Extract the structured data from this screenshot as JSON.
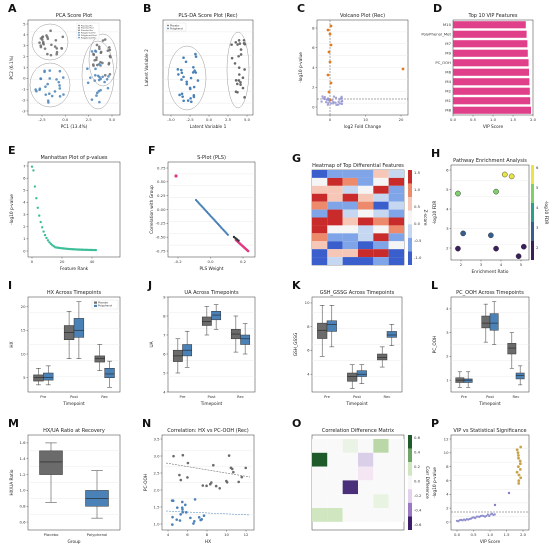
{
  "panels": [
    {
      "id": "A",
      "title": "PCA Score Plot",
      "xlabel": "PC1 (13.4%)",
      "ylabel": "PC2 (6.1%)",
      "xticks": [
        "-2.5",
        "0.0",
        "2.5",
        "5.0"
      ],
      "yticks": [
        "-3",
        "-2",
        "-1",
        "0",
        "1",
        "2",
        "3",
        "4",
        "5"
      ],
      "legend": [
        "Placebo Pre",
        "Placebo Post",
        "Placebo Rec",
        "Polyphenol Pre",
        "Polyphenol Post",
        "Polyphenol Rec"
      ]
    },
    {
      "id": "B",
      "title": "PLS-DA Score Plot (Rec)",
      "xlabel": "Latent Variable 1",
      "ylabel": "Latent Variable 2",
      "xticks": [
        "-5.0",
        "-2.5",
        "0.0",
        "2.5",
        "5.0"
      ],
      "yticks": [],
      "legend": [
        "Placebo",
        "Polyphenol"
      ]
    },
    {
      "id": "C",
      "title": "Volcano Plot (Rec)",
      "xlabel": "log2 Fold Change",
      "ylabel": "-log10 p-value",
      "xticks": [
        "0",
        "10",
        "20"
      ],
      "yticks": [
        "0",
        "2",
        "4",
        "6",
        "8"
      ]
    },
    {
      "id": "D",
      "title": "Top 10 VIP Features",
      "xlabel": "VIP Score",
      "xticks": [
        "0.0",
        "0.5",
        "1.0",
        "1.5",
        "2.0"
      ],
      "features": [
        "M10",
        "PolyPhenol_Met",
        "M7",
        "M9",
        "PC_OOH",
        "M6",
        "M4",
        "M2",
        "M1",
        "M8"
      ]
    },
    {
      "id": "E",
      "title": "Manhattan Plot of p-values",
      "xlabel": "Feature Rank",
      "ylabel": "-log10 p-value",
      "xticks": [
        "0",
        "20",
        "40"
      ],
      "yticks": [
        "0",
        "1",
        "2",
        "3",
        "4",
        "5",
        "6",
        "7"
      ]
    },
    {
      "id": "F",
      "title": "S-Plot (PLS)",
      "xlabel": "PLS Weight",
      "ylabel": "Correlation with Group",
      "xticks": [
        "-0.2",
        "0.0",
        "0.2"
      ],
      "yticks": [
        "-0.75",
        "-0.50",
        "-0.25",
        "0.00",
        "0.25",
        "0.50",
        "0.75"
      ]
    },
    {
      "id": "G",
      "title": "Heatmap of Top Differential Features",
      "cbar_label": "Z-score",
      "cbar_ticks": [
        "1.5",
        "1.0",
        "0.5",
        "0.0",
        "-0.5",
        "-1.0"
      ]
    },
    {
      "id": "H",
      "title": "Pathway Enrichment Analysis",
      "xlabel": "Enrichment Ratio",
      "ylabel": "-log10 FDR",
      "cbar_label": "-log10 FDR",
      "xticks": [
        "2",
        "3",
        "4",
        "5"
      ],
      "yticks": [
        "2",
        "3",
        "4",
        "5",
        "6"
      ],
      "cbar_ticks": [
        "6",
        "5",
        "4",
        "3",
        "2"
      ]
    },
    {
      "id": "I",
      "title": "HX Across Timepoints",
      "xlabel": "Timepoint",
      "ylabel": "HX",
      "cats": [
        "Pre",
        "Post",
        "Rec"
      ],
      "yticks": [
        "5",
        "10",
        "15",
        "20"
      ],
      "legend": [
        "Placebo",
        "Polyphenol"
      ]
    },
    {
      "id": "J",
      "title": "UA Across Timepoints",
      "xlabel": "Timepoint",
      "ylabel": "UA",
      "cats": [
        "Pre",
        "Post",
        "Rec"
      ],
      "yticks": [
        "4",
        "5",
        "6",
        "7",
        "8",
        "9"
      ]
    },
    {
      "id": "K",
      "title": "GSH_GSSG Across Timepoints",
      "xlabel": "Timepoint",
      "ylabel": "GSH_GSSG",
      "cats": [
        "Pre",
        "Post",
        "Rec"
      ],
      "yticks": [
        "4",
        "6",
        "8",
        "10"
      ]
    },
    {
      "id": "L",
      "title": "PC_OOH Across Timepoints",
      "xlabel": "Timepoint",
      "ylabel": "PC_OOH",
      "cats": [
        "Pre",
        "Post",
        "Rec"
      ],
      "yticks": [
        "1",
        "2",
        "3",
        "4"
      ]
    },
    {
      "id": "M",
      "title": "HX/UA Ratio at Recovery",
      "xlabel": "Group",
      "ylabel": "HX/UA Ratio",
      "cats": [
        "Placebo",
        "Polyphenol"
      ],
      "yticks": [
        "0.6",
        "0.8",
        "1.0",
        "1.2",
        "1.4",
        "1.6"
      ]
    },
    {
      "id": "N",
      "title": "Correlation: HX vs PC-OOH (Rec)",
      "xlabel": "HX",
      "ylabel": "PC-OOH",
      "xticks": [
        "4",
        "6",
        "8",
        "10",
        "12"
      ],
      "yticks": [
        "1.0",
        "1.5",
        "2.0",
        "2.5",
        "3.0",
        "3.5"
      ]
    },
    {
      "id": "O",
      "title": "Correlation Difference Matrix",
      "cbar_label": "Corr Difference",
      "cbar_ticks": [
        "0.6",
        "0.4",
        "0.2",
        "0.0",
        "-0.2",
        "-0.4",
        "-0.6"
      ]
    },
    {
      "id": "P",
      "title": "VIP vs Statistical Significance",
      "xlabel": "VIP Score",
      "ylabel": "-log10 p-value",
      "xticks": [
        "0.0",
        "0.5",
        "1.0",
        "1.5",
        "2.0"
      ],
      "yticks": [
        "0",
        "2",
        "4",
        "6",
        "8",
        "10",
        "12"
      ]
    }
  ],
  "colors": {
    "placebo": "#6b6b6b",
    "polyphenol": "#4a82b8",
    "vip": "#e0408a",
    "manhattan": "#3cbf98",
    "volcano_sig": "#e07b20",
    "volcano_ns": "#8f8fcf",
    "splot_pos": "#e23a84"
  },
  "chart_data": [
    {
      "panel": "D",
      "type": "bar",
      "orientation": "horizontal",
      "categories": [
        "M10",
        "PolyPhenol_Met",
        "M7",
        "M9",
        "PC_OOH",
        "M6",
        "M4",
        "M2",
        "M1",
        "M8"
      ],
      "values": [
        1.82,
        1.84,
        1.86,
        1.87,
        1.89,
        1.9,
        1.91,
        1.92,
        1.93,
        1.95
      ],
      "xlim": [
        0,
        2.0
      ]
    },
    {
      "panel": "I",
      "type": "box",
      "categories": [
        "Pre",
        "Post",
        "Rec"
      ],
      "series": [
        {
          "name": "Placebo",
          "boxes": [
            [
              3.5,
              4.3,
              5,
              5.6,
              7
            ],
            [
              9,
              13,
              14.5,
              16,
              19
            ],
            [
              6.5,
              8.3,
              9,
              9.6,
              12
            ]
          ]
        },
        {
          "name": "Polyphenol",
          "boxes": [
            [
              3.5,
              4.5,
              5.1,
              6,
              7.5
            ],
            [
              9,
              13.5,
              15,
              17.5,
              21
            ],
            [
              3,
              5,
              5.8,
              7,
              8.5
            ]
          ]
        }
      ],
      "ylim": [
        2,
        22
      ]
    },
    {
      "panel": "J",
      "type": "box",
      "categories": [
        "Pre",
        "Post",
        "Rec"
      ],
      "series": [
        {
          "name": "Placebo",
          "boxes": [
            [
              5,
              5.6,
              5.9,
              6.2,
              6.8
            ],
            [
              7,
              7.5,
              7.7,
              7.95,
              8.5
            ],
            [
              6.1,
              6.8,
              7.05,
              7.3,
              8
            ]
          ]
        },
        {
          "name": "Polyphenol",
          "boxes": [
            [
              5.3,
              5.9,
              6.2,
              6.5,
              7.2
            ],
            [
              7.3,
              7.8,
              8.05,
              8.25,
              8.6
            ],
            [
              6,
              6.5,
              6.8,
              7,
              7.6
            ]
          ]
        }
      ],
      "ylim": [
        4,
        9
      ]
    },
    {
      "panel": "K",
      "type": "box",
      "categories": [
        "Pre",
        "Post",
        "Rec"
      ],
      "series": [
        {
          "name": "Placebo",
          "boxes": [
            [
              5.5,
              7,
              7.7,
              8.3,
              9.8
            ],
            [
              2.8,
              3.4,
              3.8,
              4.1,
              4.8
            ],
            [
              4.6,
              5.2,
              5.4,
              5.7,
              6.3
            ]
          ]
        },
        {
          "name": "Polyphenol",
          "boxes": [
            [
              6.3,
              7.6,
              8.2,
              8.5,
              9.8
            ],
            [
              3.2,
              3.8,
              4,
              4.3,
              4.8
            ],
            [
              6.4,
              7.1,
              7.3,
              7.6,
              8.2
            ]
          ]
        }
      ],
      "ylim": [
        2.5,
        10.5
      ]
    },
    {
      "panel": "L",
      "type": "box",
      "categories": [
        "Pre",
        "Post",
        "Rec"
      ],
      "series": [
        {
          "name": "Placebo",
          "boxes": [
            [
              0.7,
              0.9,
              1,
              1.1,
              1.35
            ],
            [
              2.6,
              3.2,
              3.4,
              3.7,
              4.2
            ],
            [
              1.5,
              2.1,
              2.35,
              2.55,
              3
            ]
          ]
        },
        {
          "name": "Polyphenol",
          "boxes": [
            [
              0.7,
              0.9,
              1,
              1.05,
              1.35
            ],
            [
              2.5,
              3.1,
              3.4,
              3.8,
              4.3
            ],
            [
              0.8,
              1.05,
              1.2,
              1.3,
              1.6
            ]
          ]
        }
      ],
      "ylim": [
        0.5,
        4.5
      ]
    },
    {
      "panel": "M",
      "type": "box",
      "categories": [
        "Placebo",
        "Polyphenol"
      ],
      "series": [
        {
          "name": "ratio",
          "boxes": [
            [
              0.85,
              1.2,
              1.36,
              1.5,
              1.6
            ],
            [
              0.65,
              0.8,
              0.9,
              1,
              1.25
            ]
          ]
        }
      ],
      "ylim": [
        0.5,
        1.7
      ]
    },
    {
      "panel": "H",
      "type": "scatter",
      "points": [
        [
          1.4,
          5.0,
          5.0
        ],
        [
          1.4,
          2.1,
          2.1
        ],
        [
          1.7,
          2.9,
          2.9
        ],
        [
          3.3,
          2.8,
          2.8
        ],
        [
          3.6,
          2.1,
          2.1
        ],
        [
          3.6,
          5.1,
          5.1
        ],
        [
          4.1,
          6.0,
          6.0
        ],
        [
          4.5,
          5.9,
          5.9
        ],
        [
          4.9,
          1.7,
          1.7
        ],
        [
          5.2,
          2.2,
          2.2
        ]
      ],
      "xlim": [
        1,
        5.5
      ],
      "ylim": [
        1.5,
        6.5
      ]
    }
  ]
}
